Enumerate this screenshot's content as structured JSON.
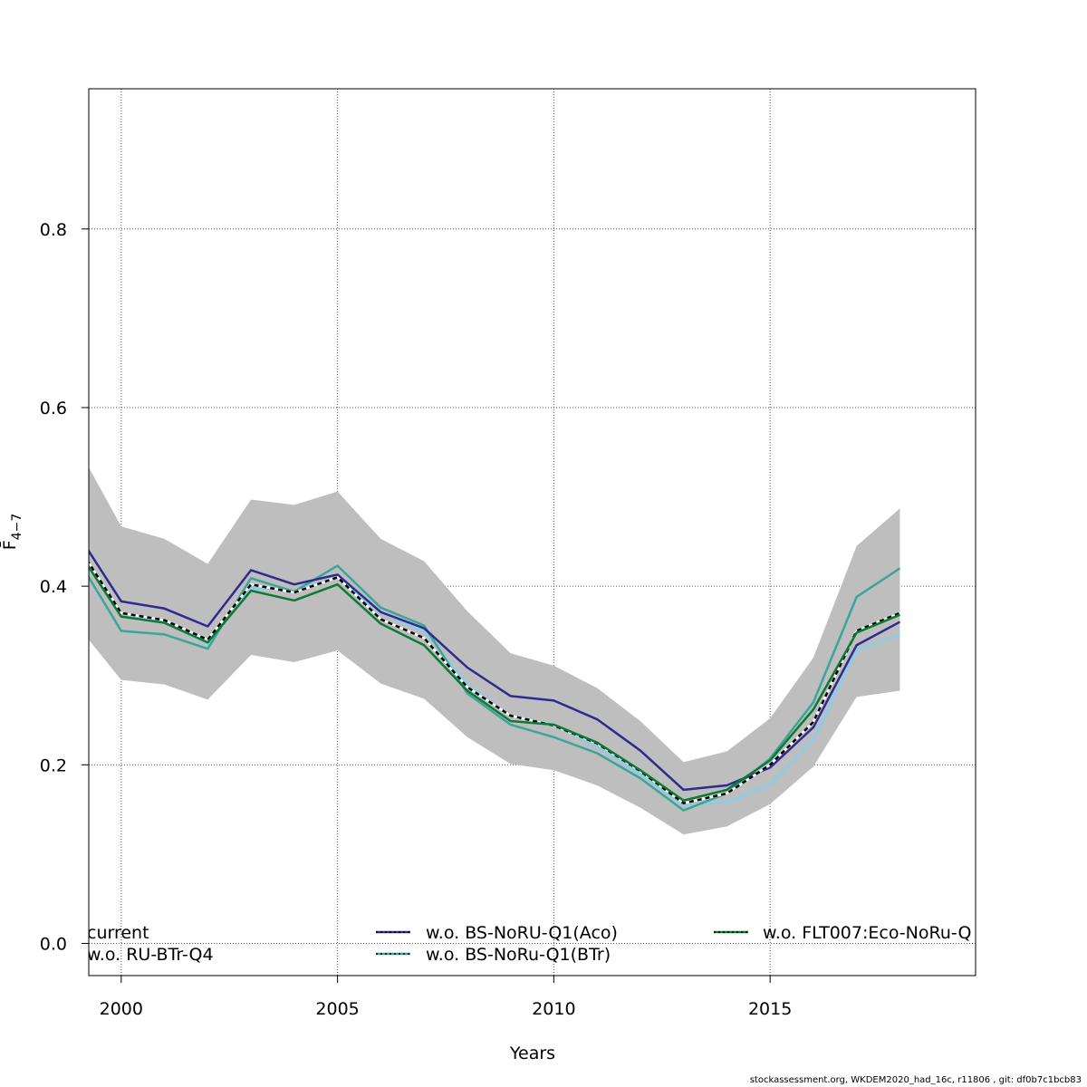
{
  "chart_data": {
    "type": "line",
    "xlabel": "Years",
    "ylabel": "F̄",
    "ylabel_sub": "4−7",
    "xlim": [
      1999.25,
      2019.75
    ],
    "ylim": [
      -0.036,
      0.957
    ],
    "x_ticks": [
      2000,
      2005,
      2010,
      2015
    ],
    "y_ticks": [
      0.0,
      0.2,
      0.4,
      0.6,
      0.8
    ],
    "x_tick_labels": [
      "2000",
      "2005",
      "2010",
      "2015"
    ],
    "y_tick_labels": [
      "0.0",
      "0.2",
      "0.4",
      "0.6",
      "0.8"
    ],
    "grid": true,
    "x": [
      1999,
      2000,
      2001,
      2002,
      2003,
      2004,
      2005,
      2006,
      2007,
      2008,
      2009,
      2010,
      2011,
      2012,
      2013,
      2014,
      2015,
      2016,
      2017,
      2018
    ],
    "band": {
      "color": "#bebebe",
      "lower": [
        0.355,
        0.295,
        0.29,
        0.273,
        0.323,
        0.315,
        0.328,
        0.291,
        0.274,
        0.231,
        0.201,
        0.194,
        0.177,
        0.152,
        0.122,
        0.131,
        0.156,
        0.198,
        0.276,
        0.283
      ],
      "upper": [
        0.555,
        0.467,
        0.453,
        0.425,
        0.497,
        0.491,
        0.506,
        0.453,
        0.428,
        0.372,
        0.325,
        0.311,
        0.286,
        0.249,
        0.203,
        0.215,
        0.252,
        0.32,
        0.445,
        0.487
      ]
    },
    "series": [
      {
        "name": "w.o. RU-BTr-Q4",
        "color": "#87ceeb",
        "dash": "",
        "width": 2.5,
        "values": [
          0.44,
          0.37,
          0.36,
          0.335,
          0.398,
          0.395,
          0.41,
          0.37,
          0.35,
          0.29,
          0.255,
          0.245,
          0.22,
          0.19,
          0.155,
          0.158,
          0.178,
          0.228,
          0.328,
          0.346
        ]
      },
      {
        "name": "w.o. BS-NoRu-Q1(BTr)",
        "color": "#3aa698",
        "dash": "",
        "width": 2.5,
        "values": [
          0.43,
          0.35,
          0.346,
          0.33,
          0.409,
          0.394,
          0.423,
          0.376,
          0.356,
          0.28,
          0.245,
          0.231,
          0.213,
          0.185,
          0.149,
          0.168,
          0.207,
          0.27,
          0.388,
          0.42
        ]
      },
      {
        "name": "w.o. BS-NoRU-Q1(Aco)",
        "color": "#2e2a8e",
        "dash": "",
        "width": 2.5,
        "values": [
          0.458,
          0.383,
          0.375,
          0.355,
          0.418,
          0.402,
          0.413,
          0.371,
          0.353,
          0.309,
          0.277,
          0.272,
          0.251,
          0.216,
          0.172,
          0.177,
          0.197,
          0.242,
          0.334,
          0.36
        ]
      },
      {
        "name": "current",
        "color": "#000000",
        "dash": "5,4",
        "width": 2.5,
        "values": [
          0.445,
          0.37,
          0.362,
          0.34,
          0.402,
          0.393,
          0.41,
          0.363,
          0.342,
          0.287,
          0.255,
          0.244,
          0.224,
          0.193,
          0.157,
          0.168,
          0.2,
          0.248,
          0.35,
          0.37
        ]
      },
      {
        "name": "w.o. FLT007:Eco-NoRu-Q",
        "color": "#0b7a33",
        "dash": "",
        "width": 2.5,
        "values": [
          0.44,
          0.366,
          0.359,
          0.337,
          0.395,
          0.384,
          0.402,
          0.358,
          0.334,
          0.283,
          0.249,
          0.245,
          0.225,
          0.194,
          0.16,
          0.172,
          0.205,
          0.262,
          0.348,
          0.368
        ]
      }
    ],
    "legend": [
      {
        "label": "current",
        "color": "#000000",
        "style": "line"
      },
      {
        "label": "w.o. RU-BTr-Q4",
        "color": "#87ceeb",
        "style": "line"
      },
      {
        "label": "w.o. BS-NoRU-Q1(Aco)",
        "color": "#2e2a8e",
        "style": "dotted"
      },
      {
        "label": "w.o. BS-NoRu-Q1(BTr)",
        "color": "#3aa698",
        "style": "dotted"
      },
      {
        "label": "w.o. FLT007:Eco-NoRu-Q",
        "color": "#0b7a33",
        "style": "dotted"
      }
    ]
  },
  "footer": "stockassessment.org, WKDEM2020_had_16c, r11806 , git: df0b7c1bcb83"
}
